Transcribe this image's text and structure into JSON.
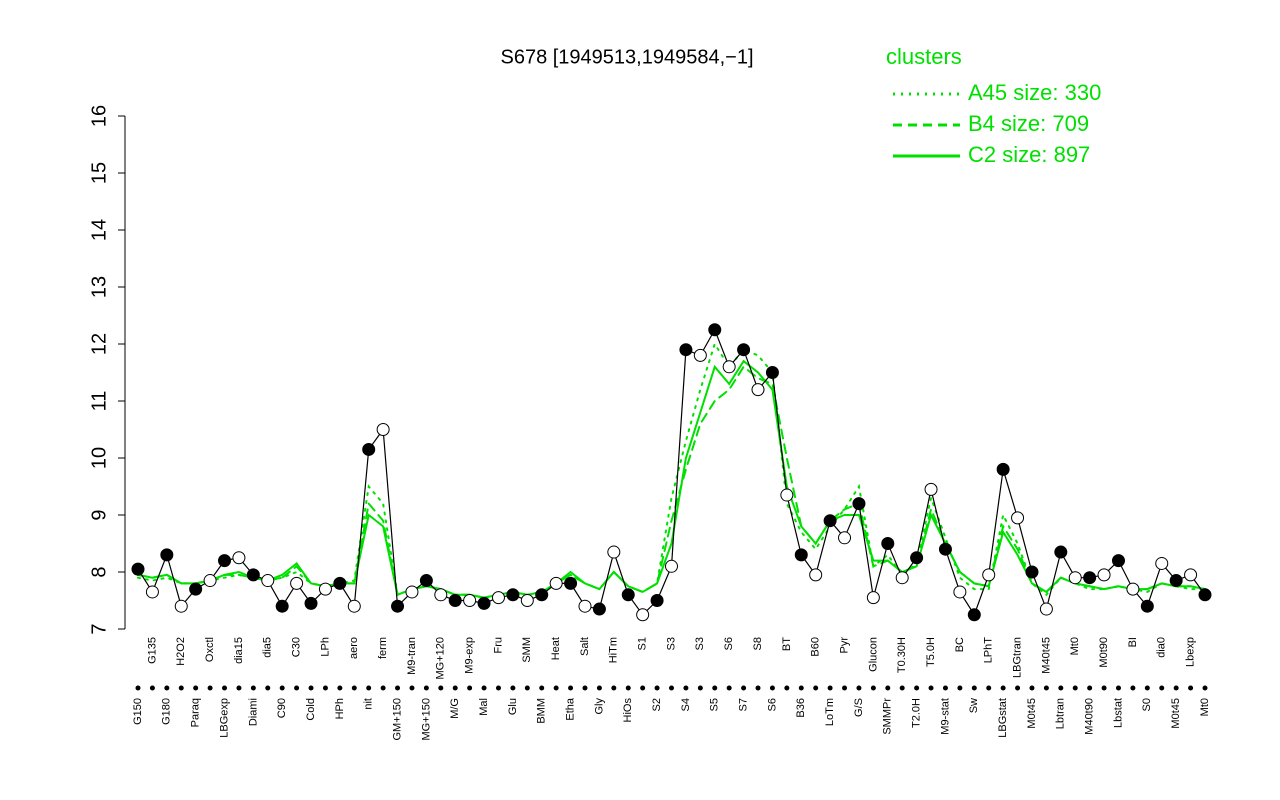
{
  "chart_data": {
    "type": "line",
    "title": "S678 [1949513,1949584,−1]",
    "legend_title": "clusters",
    "legend_position": "top-right",
    "ylim": [
      7,
      16
    ],
    "yticks": [
      7,
      8,
      9,
      10,
      11,
      12,
      13,
      14,
      15,
      16
    ],
    "categories": [
      "G150",
      "G135",
      "G180",
      "H2O2",
      "Paraq",
      "Oxctl",
      "LBGexp",
      "dia15",
      "Diami",
      "dia5",
      "C90",
      "C30",
      "Cold",
      "LPh",
      "HPh",
      "aero",
      "nit",
      "ferm",
      "GM+150",
      "M9-tran",
      "MG+150",
      "MG+120",
      "M/G",
      "M9-exp",
      "Mal",
      "Fru",
      "Glu",
      "SMM",
      "BMM",
      "Heat",
      "Etha",
      "Salt",
      "Gly",
      "HiTm",
      "HiOs",
      "S1",
      "S2",
      "S3",
      "S4",
      "S3",
      "S5",
      "S6",
      "S7",
      "S8",
      "S6",
      "BT",
      "B36",
      "B60",
      "LoTm",
      "Pyr",
      "G/S",
      "Glucon",
      "SMMPr",
      "T0.30H",
      "T2.0H",
      "T5.0H",
      "M9-stat",
      "BC",
      "Sw",
      "LPhT",
      "LBGstat",
      "LBGtran",
      "M0t45",
      "M40t45",
      "Lbtran",
      "Mt0",
      "M40t90",
      "M0t90",
      "Lbstat",
      "BI",
      "S0",
      "dia0",
      "M0t45",
      "Lbexp",
      "Mt0"
    ],
    "values": [
      8.05,
      7.65,
      8.3,
      7.4,
      7.7,
      7.85,
      8.2,
      8.25,
      7.95,
      7.85,
      7.4,
      7.8,
      7.45,
      7.7,
      7.8,
      7.4,
      10.15,
      10.5,
      7.4,
      7.65,
      7.85,
      7.6,
      7.5,
      7.5,
      7.45,
      7.55,
      7.6,
      7.5,
      7.6,
      7.8,
      7.8,
      7.4,
      7.35,
      8.35,
      7.6,
      7.25,
      7.5,
      8.1,
      11.9,
      11.8,
      12.25,
      11.6,
      11.9,
      11.2,
      11.5,
      9.35,
      8.3,
      7.95,
      8.9,
      8.6,
      9.2,
      7.55,
      8.5,
      7.9,
      8.25,
      9.45,
      8.4,
      7.65,
      7.25,
      7.95,
      9.8,
      8.95,
      8.0,
      7.35,
      8.35,
      7.9,
      7.9,
      7.95,
      8.2,
      7.7,
      7.4,
      8.15,
      7.85,
      7.95,
      7.6
    ],
    "color": "#000000",
    "series": [
      {
        "name": "A45 size: 330",
        "color": "#00e000",
        "dash": "dotted",
        "values": [
          7.9,
          7.85,
          7.9,
          7.8,
          7.8,
          7.85,
          7.9,
          7.95,
          7.9,
          7.85,
          7.9,
          8.0,
          7.8,
          7.75,
          7.8,
          7.85,
          9.5,
          9.2,
          7.6,
          7.7,
          7.75,
          7.7,
          7.6,
          7.6,
          7.55,
          7.6,
          7.65,
          7.6,
          7.65,
          7.8,
          7.95,
          7.8,
          7.7,
          8.0,
          7.75,
          7.65,
          7.8,
          9.3,
          10.3,
          11.2,
          12.0,
          11.6,
          11.9,
          11.8,
          11.5,
          9.2,
          8.7,
          8.4,
          8.8,
          9.1,
          9.5,
          8.1,
          8.3,
          7.95,
          8.15,
          9.3,
          8.6,
          7.9,
          7.7,
          7.7,
          9.0,
          8.5,
          7.8,
          7.6,
          7.9,
          7.8,
          7.7,
          7.7,
          7.75,
          7.7,
          7.65,
          7.8,
          7.75,
          7.7,
          7.7
        ]
      },
      {
        "name": "B4 size: 709",
        "color": "#00e000",
        "dash": "dashed",
        "values": [
          7.95,
          7.9,
          7.95,
          7.8,
          7.8,
          7.85,
          7.95,
          7.95,
          7.9,
          7.85,
          7.9,
          8.1,
          7.8,
          7.75,
          7.8,
          7.8,
          9.2,
          8.9,
          7.6,
          7.7,
          7.75,
          7.7,
          7.6,
          7.6,
          7.55,
          7.6,
          7.65,
          7.6,
          7.65,
          7.8,
          7.95,
          7.8,
          7.7,
          8.0,
          7.75,
          7.65,
          7.8,
          8.9,
          9.8,
          10.6,
          11.0,
          11.2,
          11.6,
          11.4,
          11.3,
          10.0,
          8.8,
          8.5,
          8.9,
          9.1,
          9.2,
          8.1,
          8.2,
          8.0,
          8.1,
          9.1,
          8.5,
          8.0,
          7.8,
          7.75,
          8.8,
          8.4,
          7.8,
          7.65,
          7.9,
          7.8,
          7.75,
          7.7,
          7.75,
          7.7,
          7.7,
          7.8,
          7.75,
          7.75,
          7.7
        ]
      },
      {
        "name": "C2 size: 897",
        "color": "#00e000",
        "dash": "solid",
        "values": [
          7.95,
          7.9,
          7.95,
          7.8,
          7.8,
          7.85,
          7.95,
          8.0,
          7.9,
          7.85,
          7.95,
          8.15,
          7.8,
          7.75,
          7.8,
          7.8,
          9.0,
          8.8,
          7.6,
          7.7,
          7.75,
          7.7,
          7.6,
          7.6,
          7.55,
          7.6,
          7.65,
          7.6,
          7.65,
          7.8,
          8.0,
          7.8,
          7.7,
          8.0,
          7.75,
          7.65,
          7.8,
          8.5,
          10.0,
          10.8,
          11.6,
          11.3,
          11.7,
          11.5,
          11.2,
          9.5,
          8.8,
          8.5,
          8.9,
          9.0,
          9.0,
          8.2,
          8.2,
          8.0,
          8.1,
          9.0,
          8.5,
          8.0,
          7.8,
          7.75,
          8.7,
          8.3,
          7.8,
          7.65,
          7.9,
          7.8,
          7.75,
          7.7,
          7.75,
          7.7,
          7.7,
          7.8,
          7.75,
          7.75,
          7.7
        ]
      }
    ]
  }
}
